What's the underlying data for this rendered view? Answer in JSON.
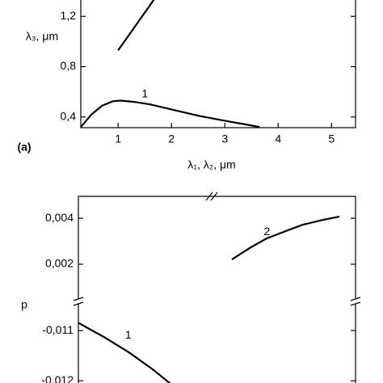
{
  "chart_data": [
    {
      "type": "line",
      "annotation": "(a)",
      "xlabel": "λ₁, λ₂, μm",
      "ylabel": "λ₃, μm",
      "xlim": [
        0.3,
        5.45
      ],
      "xticks": [
        1,
        2,
        3,
        4,
        5
      ],
      "ylim": [
        0.315,
        1.343
      ],
      "yticks": [
        {
          "value": 0.4,
          "label": "0,4"
        },
        {
          "value": 0.8,
          "label": "0,8"
        },
        {
          "value": 1.2,
          "label": "1,2"
        }
      ],
      "series": [
        {
          "name": "1",
          "color": "#000000",
          "x": [
            0.3,
            0.5,
            0.7,
            0.9,
            1.05,
            1.3,
            1.6,
            2.0,
            2.5,
            3.0,
            3.4,
            3.65
          ],
          "values": [
            0.32,
            0.42,
            0.49,
            0.525,
            0.53,
            0.52,
            0.5,
            0.46,
            0.41,
            0.37,
            0.34,
            0.32
          ]
        },
        {
          "color": "#000000",
          "x": [
            1.0,
            1.2,
            1.4,
            1.6,
            1.68
          ],
          "values": [
            0.93,
            1.05,
            1.17,
            1.29,
            1.34
          ]
        }
      ],
      "annotations": [
        {
          "text": "1",
          "x": 1.5,
          "y": 0.58
        }
      ]
    },
    {
      "type": "broken-line",
      "ylabel": "p",
      "xlim": [
        0,
        1
      ],
      "y_segments": [
        {
          "ylim": [
            0.000386,
            0.00495
          ],
          "yticks": [
            {
              "value": 0.002,
              "label": "0,002"
            },
            {
              "value": 0.004,
              "label": "0,004"
            }
          ]
        },
        {
          "ylim": [
            -0.01214,
            -0.01042
          ],
          "yticks": [
            {
              "value": -0.012,
              "label": "-0,012"
            },
            {
              "value": -0.011,
              "label": "-0,011"
            }
          ]
        }
      ],
      "series": [
        {
          "name": "1",
          "color": "#000000",
          "segment": 1,
          "x": [
            0,
            0.096,
            0.184,
            0.27,
            0.344
          ],
          "values": [
            -0.010847,
            -0.01114,
            -0.01144,
            -0.01178,
            -0.01211
          ]
        },
        {
          "name": "2",
          "color": "#000000",
          "segment": 0,
          "x": [
            0.554,
            0.62,
            0.679,
            0.75,
            0.81,
            0.88,
            0.942
          ],
          "values": [
            0.00221,
            0.00272,
            0.00312,
            0.00345,
            0.00372,
            0.00392,
            0.00407
          ]
        }
      ],
      "annotations": [
        {
          "text": "1",
          "segment": 1,
          "x": 0.18,
          "y": -0.0111
        },
        {
          "text": "2",
          "segment": 0,
          "x": 0.68,
          "y": 0.0034
        }
      ]
    }
  ]
}
